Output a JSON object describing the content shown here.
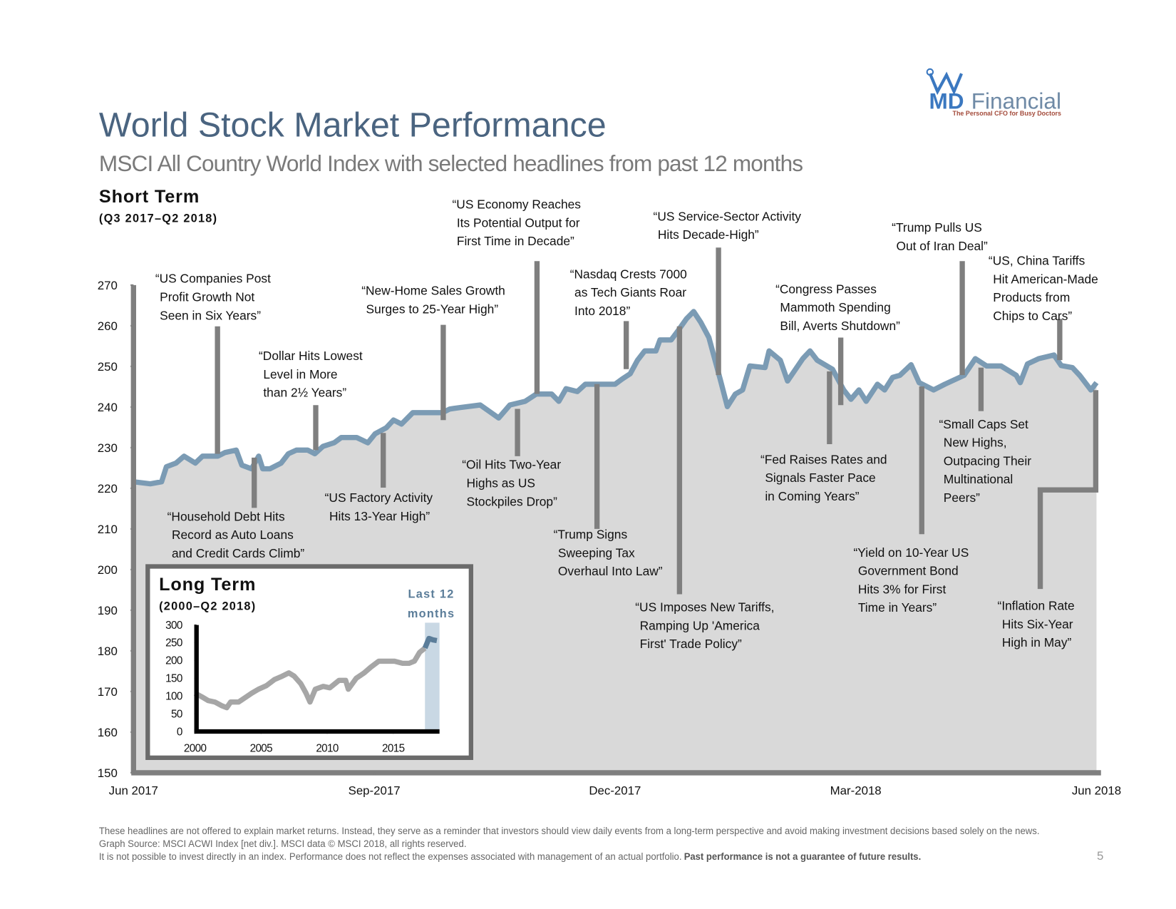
{
  "header": {
    "title": "World Stock Market Performance",
    "subtitle": "MSCI All Country World Index with selected headlines from past 12 months",
    "logo_mark": "MD",
    "logo_name": "Financial",
    "logo_tagline": "The Personal CFO for Busy Doctors"
  },
  "chart_data": [
    {
      "type": "line",
      "title": "Short Term",
      "subtitle": "(Q3 2017–Q2 2018)",
      "x": [
        0,
        0.21,
        0.35,
        0.41,
        0.53,
        0.63,
        0.77,
        0.86,
        1.05,
        1.14,
        1.28,
        1.35,
        1.47,
        1.56,
        1.61,
        1.7,
        1.84,
        1.93,
        2.03,
        2.17,
        2.26,
        2.36,
        2.5,
        2.59,
        2.78,
        2.92,
        3.01,
        3.15,
        3.24,
        3.34,
        3.48,
        3.85,
        3.94,
        4.08,
        4.32,
        4.55,
        4.69,
        4.88,
        5.02,
        5.21,
        5.3,
        5.39,
        5.53,
        5.63,
        6,
        6.09,
        6.19,
        6.28,
        6.37,
        6.51,
        6.56,
        6.7,
        6.79,
        6.89,
        6.98,
        7.07,
        7.17,
        7.31,
        7.4,
        7.5,
        7.59,
        7.68,
        7.87,
        7.92,
        8.06,
        8.15,
        8.34,
        8.43,
        8.52,
        8.71,
        8.85,
        8.94,
        9.04,
        9.13,
        9.27,
        9.36,
        9.46,
        9.55,
        9.69,
        9.79,
        9.97,
        10.11,
        10.35,
        10.49,
        10.63,
        10.81,
        11,
        11.05,
        11.14,
        11.28,
        11.47,
        11.56,
        11.7,
        11.79,
        11.93,
        12
      ],
      "series": [
        {
          "color": "#7b9bb4",
          "values": [
            221.6,
            221.1,
            221.6,
            225.3,
            226.2,
            227.9,
            226.2,
            227.9,
            227.9,
            228.8,
            229.4,
            225.7,
            224.8,
            227.9,
            224.8,
            224.8,
            226.2,
            228.5,
            229.4,
            229.4,
            228.5,
            230.3,
            231.2,
            232.5,
            232.5,
            231.2,
            233.4,
            234.9,
            236.8,
            235.8,
            238.6,
            238.6,
            239.5,
            239.9,
            240.5,
            237.3,
            240.5,
            241.4,
            243.2,
            243.2,
            241.4,
            244.5,
            243.8,
            245.6,
            245.6,
            246.9,
            248.2,
            251.5,
            253.8,
            253.8,
            256.5,
            256.5,
            258.9,
            261.7,
            263.5,
            260.8,
            257.1,
            246.9,
            240.1,
            243.2,
            244.2,
            250.1,
            249.7,
            253.8,
            251.5,
            246.4,
            251.9,
            253.8,
            251.5,
            249.3,
            244.2,
            241.9,
            244.2,
            241.4,
            245.6,
            244.2,
            247.3,
            247.8,
            250.4,
            246,
            244.2,
            245.6,
            247.8,
            251.9,
            250.1,
            250.1,
            247.8,
            246,
            250.6,
            251.9,
            252.8,
            250.2,
            249.7,
            247.8,
            244.2,
            246
          ]
        }
      ],
      "xlim": [
        0,
        12
      ],
      "ylim": [
        150,
        270
      ],
      "xticks": [
        {
          "value": 0,
          "label": "Jun 2017"
        },
        {
          "value": 3,
          "label": "Sep-2017"
        },
        {
          "value": 6,
          "label": "Dec-2017"
        },
        {
          "value": 9,
          "label": "Mar-2018"
        },
        {
          "value": 12,
          "label": "Jun 2018"
        }
      ],
      "yticks": [
        150,
        160,
        170,
        180,
        190,
        200,
        210,
        220,
        230,
        240,
        250,
        260,
        270
      ],
      "annotations": [
        [
          "“US Companies Post",
          "Profit Growth Not",
          "Seen in Six Years”"
        ],
        [
          "“Household Debt Hits",
          "Record as Auto Loans",
          "and Credit Cards Climb”"
        ],
        [
          "“Dollar Hits Lowest",
          "Level in More",
          "than 2½ Years”"
        ],
        [
          "“US Factory Activity",
          "Hits 13-Year High”"
        ],
        [
          "“New-Home Sales Growth",
          "Surges to 25-Year High”"
        ],
        [
          "“Oil Hits Two-Year",
          "Highs as US",
          "Stockpiles Drop”"
        ],
        [
          "“US Economy Reaches",
          "Its Potential Output for",
          "First Time in Decade”"
        ],
        [
          "“Trump Signs",
          "Sweeping Tax",
          "Overhaul Into Law”"
        ],
        [
          "“Nasdaq Crests 7000",
          "as Tech Giants Roar",
          "Into 2018”"
        ],
        [
          "“US Imposes New Tariffs,",
          "Ramping Up 'America",
          "First' Trade Policy”"
        ],
        [
          "“US Service-Sector Activity",
          "Hits Decade-High”"
        ],
        [
          "“Congress Passes",
          "Mammoth Spending",
          "Bill, Averts Shutdown”"
        ],
        [
          "“Fed Raises Rates and",
          "Signals Faster Pace",
          "in Coming Years”"
        ],
        [
          "“Yield on 10-Year US",
          "Government Bond",
          "Hits 3% for First",
          "Time in Years”"
        ],
        [
          "“Trump Pulls US",
          "Out of Iran Deal”"
        ],
        [
          "“Small Caps Set",
          "New Highs,",
          "Outpacing Their",
          "Multinational",
          "Peers”"
        ],
        [
          "“US, China Tariffs",
          "Hit American-Made",
          "Products from",
          "Chips to Cars”"
        ],
        [
          "“Inflation Rate",
          "Hits Six-Year",
          "High in May”"
        ]
      ]
    },
    {
      "type": "line",
      "title": "Long Term",
      "subtitle": "(2000–Q2 2018)",
      "series": [
        {
          "color": "#a6a6a6",
          "x": [
            2000,
            2000.5,
            2001,
            2001.5,
            2002,
            2002.4,
            2002.7,
            2003.3,
            2004.3,
            2004.8,
            2005.4,
            2006,
            2006.5,
            2007.1,
            2007.5,
            2008,
            2008.4,
            2008.7,
            2009.1,
            2009.7,
            2010.2,
            2010.9,
            2011.4,
            2011.6,
            2012.2,
            2012.8,
            2013.3,
            2013.9,
            2014.5,
            2015.1,
            2015.7,
            2016.2,
            2016.6,
            2017,
            2017.4
          ],
          "values": [
            108,
            98,
            87,
            83,
            73,
            67,
            83,
            83,
            108,
            119,
            129,
            146,
            154,
            165,
            156,
            135,
            108,
            83,
            119,
            127,
            123,
            144,
            144,
            119,
            150,
            165,
            181,
            198,
            198,
            198,
            192,
            192,
            198,
            223,
            235
          ]
        },
        {
          "color": "#5b7d99",
          "x": [
            2017.4,
            2017.7,
            2018,
            2018.3
          ],
          "values": [
            235,
            262,
            258,
            256
          ]
        }
      ],
      "highlight_label": [
        "Last 12",
        "months"
      ],
      "highlight_range": [
        2017.4,
        2018.5
      ],
      "highlight_color": "#c9d8e4",
      "xlim": [
        2000,
        2018.5
      ],
      "ylim": [
        0,
        300
      ],
      "xticks": [
        2000,
        2005,
        2010,
        2015
      ],
      "yticks": [
        0,
        50,
        100,
        150,
        200,
        250,
        300
      ]
    }
  ],
  "footer": {
    "note": "These headlines are not offered to explain market returns. Instead, they serve as a reminder that investors should view daily events from a long-term perspective and avoid making investment decisions based solely on the news.",
    "source": "Graph Source: MSCI ACWI Index [net div.]. MSCI data © MSCI 2018, all rights reserved.",
    "disclaimer": "It is not possible to invest directly in an index. Performance does not reflect the expenses associated with management of an actual portfolio.",
    "disclaimer_bold": "Past performance is not a guarantee of future results.",
    "page": "5"
  }
}
